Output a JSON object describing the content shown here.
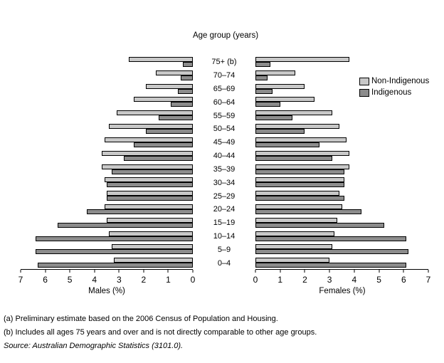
{
  "title": "Age group (years)",
  "legend": {
    "non_indigenous": "Non-Indigenous",
    "indigenous": "Indigenous"
  },
  "axes": {
    "males_label": "Males (%)",
    "females_label": "Females (%)"
  },
  "footnotes": {
    "a": "(a) Preliminary estimate based on the 2006 Census of Population and Housing.",
    "b": "(b) Includes all ages 75 years and over and is not directly comparable to other age groups.",
    "source": "Source: Australian Demographic Statistics (3101.0)."
  },
  "chart_data": {
    "type": "bar",
    "subtype": "population-pyramid",
    "title": "Age group (years)",
    "grid": false,
    "legend_position": "right",
    "xlim": [
      0,
      7
    ],
    "male_axis": {
      "label": "Males (%)",
      "ticks": [
        7,
        6,
        5,
        4,
        3,
        2,
        1,
        0
      ]
    },
    "female_axis": {
      "label": "Females (%)",
      "ticks": [
        0,
        1,
        2,
        3,
        4,
        5,
        6,
        7
      ]
    },
    "age_groups": [
      "75+ (b)",
      "70–74",
      "65–69",
      "60–64",
      "55–59",
      "50–54",
      "45–49",
      "40–44",
      "35–39",
      "30–34",
      "25–29",
      "20–24",
      "15–19",
      "10–14",
      "5–9",
      "0–4"
    ],
    "series": [
      {
        "name": "Non-Indigenous",
        "color": "#c8c8c8",
        "males": [
          2.6,
          1.5,
          1.9,
          2.4,
          3.1,
          3.4,
          3.6,
          3.7,
          3.7,
          3.6,
          3.5,
          3.6,
          3.5,
          3.4,
          3.3,
          3.2
        ],
        "females": [
          3.8,
          1.6,
          2.0,
          2.4,
          3.1,
          3.4,
          3.7,
          3.8,
          3.8,
          3.6,
          3.4,
          3.5,
          3.3,
          3.2,
          3.1,
          3.0
        ]
      },
      {
        "name": "Indigenous",
        "color": "#8c8c8c",
        "males": [
          0.4,
          0.5,
          0.6,
          0.9,
          1.4,
          1.9,
          2.4,
          2.8,
          3.3,
          3.5,
          3.5,
          4.3,
          5.5,
          6.4,
          6.4,
          6.3
        ],
        "females": [
          0.6,
          0.5,
          0.7,
          1.0,
          1.5,
          2.0,
          2.6,
          3.1,
          3.6,
          3.6,
          3.6,
          4.3,
          5.2,
          6.1,
          6.2,
          6.1
        ]
      }
    ]
  }
}
